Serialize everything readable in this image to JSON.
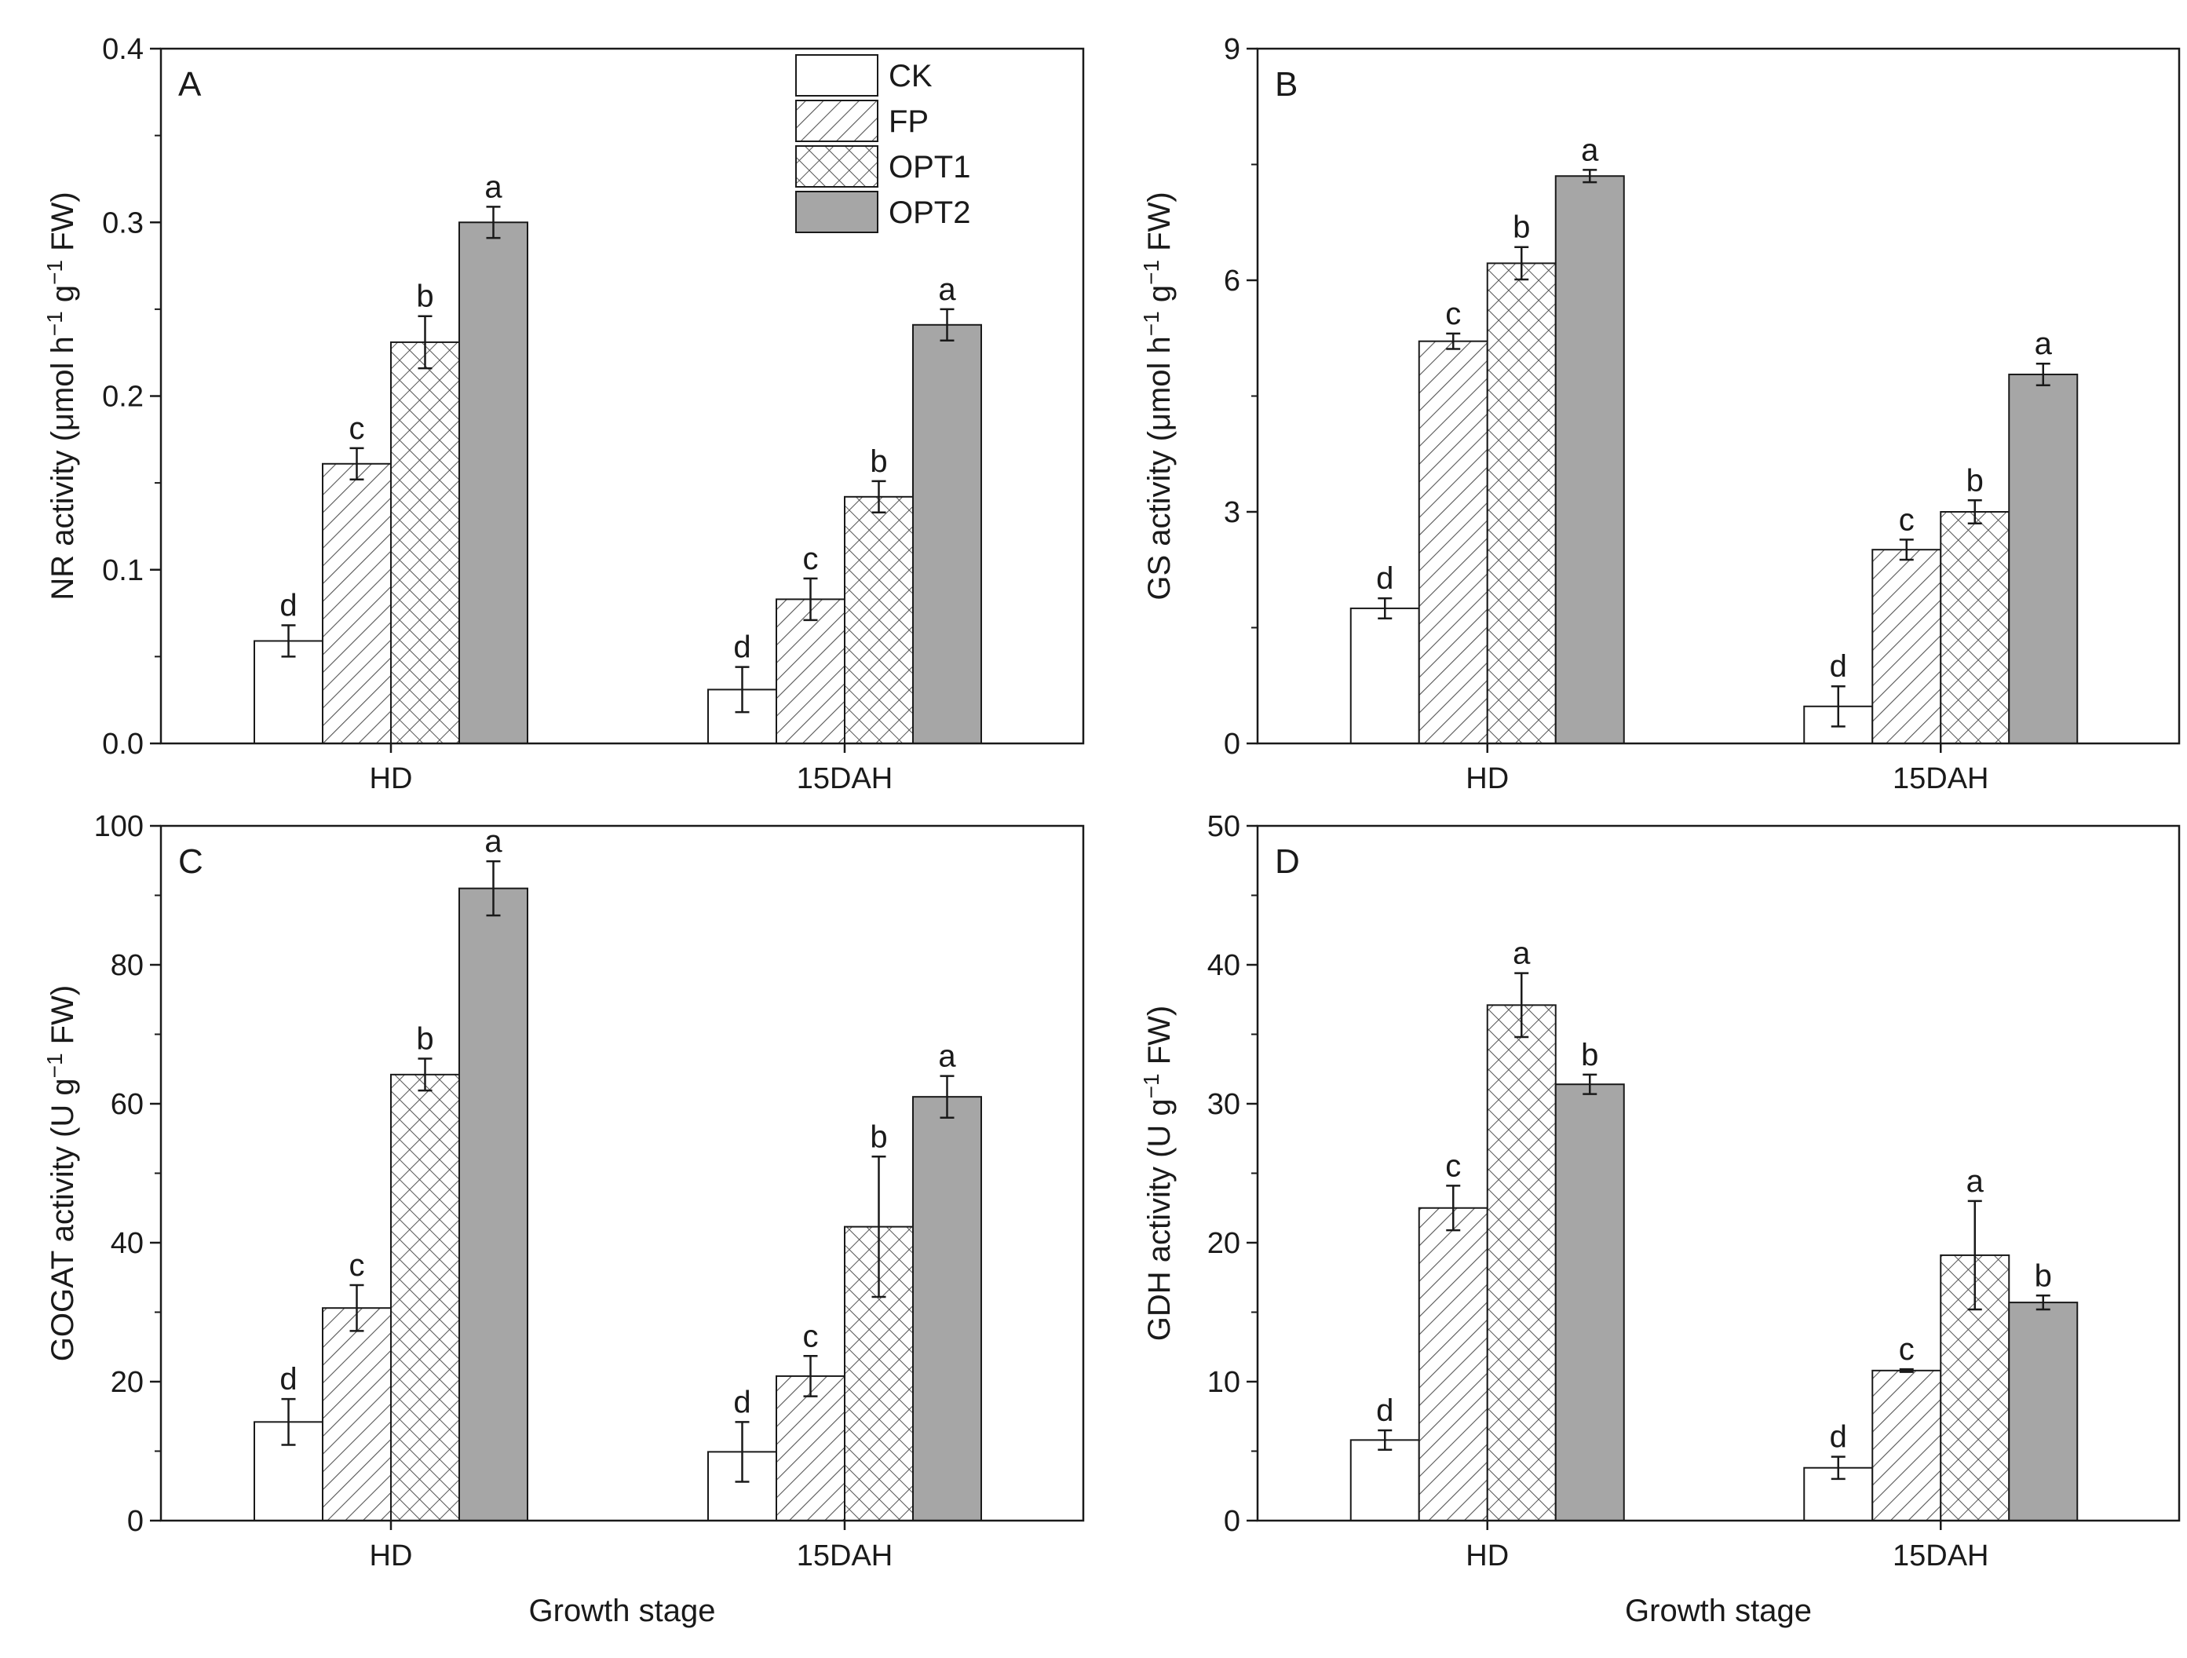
{
  "series_names": [
    "CK",
    "FP",
    "OPT1",
    "OPT2"
  ],
  "colors": {
    "axis": "#1a1a1a",
    "OPT2_fill": "#a6a6a6",
    "CK_fill": "#ffffff",
    "pattern_stroke": "#555555"
  },
  "chart_data": [
    {
      "type": "bar",
      "panel": "A",
      "categories": [
        "HD",
        "15DAH"
      ],
      "series": [
        {
          "name": "CK",
          "values": [
            0.059,
            0.031
          ],
          "errors": [
            0.009,
            0.013
          ],
          "letters": [
            "d",
            "d"
          ]
        },
        {
          "name": "FP",
          "values": [
            0.161,
            0.083
          ],
          "errors": [
            0.009,
            0.012
          ],
          "letters": [
            "c",
            "c"
          ]
        },
        {
          "name": "OPT1",
          "values": [
            0.231,
            0.142
          ],
          "errors": [
            0.015,
            0.009
          ],
          "letters": [
            "b",
            "b"
          ]
        },
        {
          "name": "OPT2",
          "values": [
            0.3,
            0.241
          ],
          "errors": [
            0.009,
            0.009
          ],
          "letters": [
            "a",
            "a"
          ]
        }
      ],
      "ylim": [
        0,
        0.4
      ],
      "yticks": [
        0.0,
        0.1,
        0.2,
        0.3,
        0.4
      ],
      "ytick_labels": [
        "0.0",
        "0.1",
        "0.2",
        "0.3",
        "0.4"
      ],
      "ylabel_main": "NR activity (μmol h",
      "ylabel_sup1": "−1",
      "ylabel_mid": " g",
      "ylabel_sup2": "−1",
      "ylabel_end": " FW)",
      "xlabel": "",
      "legend": "top"
    },
    {
      "type": "bar",
      "panel": "B",
      "categories": [
        "HD",
        "15DAH"
      ],
      "series": [
        {
          "name": "CK",
          "values": [
            1.75,
            0.48
          ],
          "errors": [
            0.13,
            0.26
          ],
          "letters": [
            "d",
            "d"
          ]
        },
        {
          "name": "FP",
          "values": [
            5.21,
            2.51
          ],
          "errors": [
            0.1,
            0.13
          ],
          "letters": [
            "c",
            "c"
          ]
        },
        {
          "name": "OPT1",
          "values": [
            6.22,
            3.0
          ],
          "errors": [
            0.21,
            0.15
          ],
          "letters": [
            "b",
            "b"
          ]
        },
        {
          "name": "OPT2",
          "values": [
            7.35,
            4.78
          ],
          "errors": [
            0.08,
            0.14
          ],
          "letters": [
            "a",
            "a"
          ]
        }
      ],
      "ylim": [
        0,
        9
      ],
      "yticks": [
        0,
        3,
        6,
        9
      ],
      "ytick_labels": [
        "0",
        "3",
        "6",
        "9"
      ],
      "ylabel_main": "GS activity (μmol h",
      "ylabel_sup1": "−1",
      "ylabel_mid": " g",
      "ylabel_sup2": "−1",
      "ylabel_end": " FW)",
      "xlabel": ""
    },
    {
      "type": "bar",
      "panel": "C",
      "categories": [
        "HD",
        "15DAH"
      ],
      "series": [
        {
          "name": "CK",
          "values": [
            14.2,
            9.9
          ],
          "errors": [
            3.3,
            4.3
          ],
          "letters": [
            "d",
            "d"
          ]
        },
        {
          "name": "FP",
          "values": [
            30.6,
            20.8
          ],
          "errors": [
            3.3,
            2.9
          ],
          "letters": [
            "c",
            "c"
          ]
        },
        {
          "name": "OPT1",
          "values": [
            64.2,
            42.3
          ],
          "errors": [
            2.3,
            10.1
          ],
          "letters": [
            "b",
            "b"
          ]
        },
        {
          "name": "OPT2",
          "values": [
            91.0,
            61.0
          ],
          "errors": [
            3.9,
            3.0
          ],
          "letters": [
            "a",
            "a"
          ]
        }
      ],
      "ylim": [
        0,
        100
      ],
      "yticks": [
        0,
        20,
        40,
        60,
        80,
        100
      ],
      "ytick_labels": [
        "0",
        "20",
        "40",
        "60",
        "80",
        "100"
      ],
      "ylabel_main": "GOGAT activity (U g",
      "ylabel_sup1": "−1",
      "ylabel_mid": "",
      "ylabel_sup2": "",
      "ylabel_end": " FW)",
      "xlabel": "Growth stage"
    },
    {
      "type": "bar",
      "panel": "D",
      "categories": [
        "HD",
        "15DAH"
      ],
      "series": [
        {
          "name": "CK",
          "values": [
            5.8,
            3.8
          ],
          "errors": [
            0.7,
            0.8
          ],
          "letters": [
            "d",
            "d"
          ]
        },
        {
          "name": "FP",
          "values": [
            22.5,
            10.8
          ],
          "errors": [
            1.6,
            0.1
          ],
          "letters": [
            "c",
            "c"
          ]
        },
        {
          "name": "OPT1",
          "values": [
            37.1,
            19.1
          ],
          "errors": [
            2.3,
            3.9
          ],
          "letters": [
            "a",
            "a"
          ]
        },
        {
          "name": "OPT2",
          "values": [
            31.4,
            15.7
          ],
          "errors": [
            0.7,
            0.5
          ],
          "letters": [
            "b",
            "b"
          ]
        }
      ],
      "ylim": [
        0,
        50
      ],
      "yticks": [
        0,
        10,
        20,
        30,
        40,
        50
      ],
      "ytick_labels": [
        "0",
        "10",
        "20",
        "30",
        "40",
        "50"
      ],
      "ylabel_main": "GDH activity (U g",
      "ylabel_sup1": "−1",
      "ylabel_mid": "",
      "ylabel_sup2": "",
      "ylabel_end": " FW)",
      "xlabel": "Growth stage"
    }
  ]
}
